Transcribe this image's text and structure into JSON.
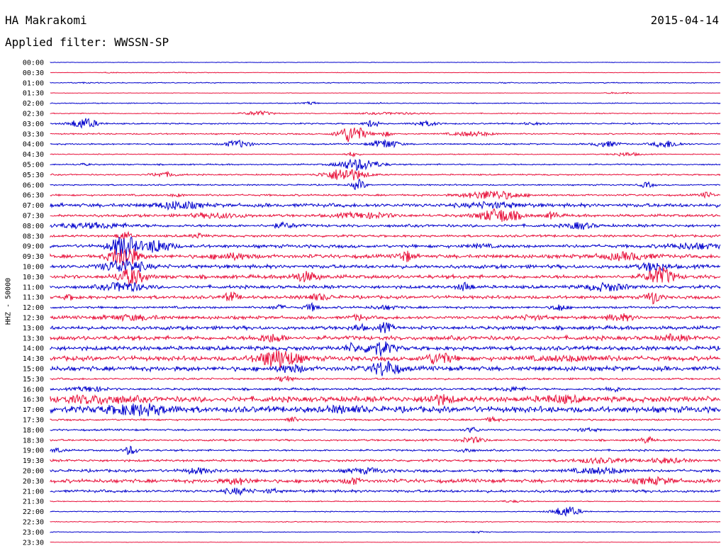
{
  "header": {
    "station": "HA Makrakomi",
    "date": "2015-04-14",
    "filter": "Applied filter: WWSSN-SP"
  },
  "chart_data": {
    "type": "line",
    "title": "HA Makrakomi",
    "ylabel": "HHZ - 50000",
    "colors": [
      "#0000cc",
      "#e8103a"
    ],
    "rows": [
      {
        "label": "00:00",
        "activity": 0.05,
        "events": []
      },
      {
        "label": "00:30",
        "activity": 0.05,
        "events": [
          [
            0.09,
            0.1,
            0.01
          ],
          [
            0.18,
            0.05,
            0.06
          ]
        ]
      },
      {
        "label": "01:00",
        "activity": 0.1,
        "events": [
          [
            0.05,
            0.1,
            0.01
          ],
          [
            0.68,
            0.1,
            0.01
          ]
        ]
      },
      {
        "label": "01:30",
        "activity": 0.05,
        "events": [
          [
            0.84,
            0.15,
            0.01
          ],
          [
            0.86,
            0.15,
            0.01
          ]
        ]
      },
      {
        "label": "02:00",
        "activity": 0.1,
        "events": [
          [
            0.39,
            0.3,
            0.01
          ],
          [
            0.49,
            0.1,
            0.01
          ]
        ]
      },
      {
        "label": "02:30",
        "activity": 0.1,
        "events": [
          [
            0.31,
            0.5,
            0.02
          ],
          [
            0.51,
            0.2,
            0.05
          ]
        ]
      },
      {
        "label": "03:00",
        "activity": 0.15,
        "events": [
          [
            0.05,
            1.2,
            0.02
          ],
          [
            0.48,
            0.8,
            0.01
          ],
          [
            0.56,
            0.5,
            0.02
          ],
          [
            0.72,
            0.2,
            0.02
          ]
        ]
      },
      {
        "label": "03:30",
        "activity": 0.15,
        "events": [
          [
            0.45,
            2.0,
            0.02
          ],
          [
            0.5,
            0.5,
            0.01
          ],
          [
            0.63,
            0.5,
            0.03
          ]
        ]
      },
      {
        "label": "04:00",
        "activity": 0.15,
        "events": [
          [
            0.28,
            0.8,
            0.02
          ],
          [
            0.5,
            1.0,
            0.02
          ],
          [
            0.83,
            0.6,
            0.02
          ],
          [
            0.92,
            0.8,
            0.02
          ]
        ]
      },
      {
        "label": "04:30",
        "activity": 0.1,
        "events": [
          [
            0.45,
            0.5,
            0.01
          ],
          [
            0.86,
            0.4,
            0.02
          ]
        ]
      },
      {
        "label": "05:00",
        "activity": 0.15,
        "events": [
          [
            0.46,
            1.3,
            0.03
          ],
          [
            0.05,
            0.2,
            0.01
          ]
        ]
      },
      {
        "label": "05:30",
        "activity": 0.15,
        "events": [
          [
            0.44,
            1.5,
            0.03
          ],
          [
            0.17,
            0.5,
            0.02
          ]
        ]
      },
      {
        "label": "06:00",
        "activity": 0.15,
        "events": [
          [
            0.46,
            1.2,
            0.01
          ],
          [
            0.89,
            0.6,
            0.01
          ]
        ]
      },
      {
        "label": "06:30",
        "activity": 0.2,
        "events": [
          [
            0.66,
            1.0,
            0.04
          ],
          [
            0.19,
            0.3,
            0.01
          ],
          [
            0.98,
            0.6,
            0.01
          ]
        ]
      },
      {
        "label": "07:00",
        "activity": 0.4,
        "events": [
          [
            0.19,
            0.8,
            0.03
          ],
          [
            0.66,
            0.5,
            0.04
          ]
        ]
      },
      {
        "label": "07:30",
        "activity": 0.3,
        "events": [
          [
            0.25,
            0.5,
            0.04
          ],
          [
            0.47,
            0.6,
            0.04
          ],
          [
            0.67,
            1.5,
            0.03
          ],
          [
            0.75,
            0.7,
            0.01
          ]
        ]
      },
      {
        "label": "08:00",
        "activity": 0.3,
        "events": [
          [
            0.06,
            0.5,
            0.06
          ],
          [
            0.35,
            0.5,
            0.02
          ],
          [
            0.79,
            0.7,
            0.02
          ]
        ]
      },
      {
        "label": "08:30",
        "activity": 0.25,
        "events": [
          [
            0.11,
            1.0,
            0.01
          ],
          [
            0.22,
            0.5,
            0.01
          ]
        ]
      },
      {
        "label": "09:00",
        "activity": 0.35,
        "events": [
          [
            0.11,
            2.5,
            0.02
          ],
          [
            0.16,
            1.5,
            0.02
          ],
          [
            0.64,
            0.3,
            0.02
          ],
          [
            0.96,
            0.6,
            0.04
          ]
        ]
      },
      {
        "label": "09:30",
        "activity": 0.4,
        "events": [
          [
            0.11,
            2.5,
            0.02
          ],
          [
            0.27,
            0.6,
            0.03
          ],
          [
            0.53,
            1.2,
            0.01
          ],
          [
            0.86,
            0.7,
            0.04
          ]
        ]
      },
      {
        "label": "10:00",
        "activity": 0.4,
        "events": [
          [
            0.11,
            1.5,
            0.03
          ],
          [
            0.9,
            0.9,
            0.02
          ]
        ]
      },
      {
        "label": "10:30",
        "activity": 0.4,
        "events": [
          [
            0.12,
            1.8,
            0.02
          ],
          [
            0.38,
            1.0,
            0.02
          ],
          [
            0.91,
            2.0,
            0.02
          ]
        ]
      },
      {
        "label": "11:00",
        "activity": 0.35,
        "events": [
          [
            0.11,
            1.0,
            0.03
          ],
          [
            0.62,
            1.0,
            0.01
          ],
          [
            0.83,
            0.8,
            0.03
          ]
        ]
      },
      {
        "label": "11:30",
        "activity": 0.35,
        "events": [
          [
            0.03,
            0.5,
            0.01
          ],
          [
            0.27,
            1.0,
            0.01
          ],
          [
            0.4,
            0.6,
            0.02
          ],
          [
            0.9,
            1.5,
            0.01
          ]
        ]
      },
      {
        "label": "12:00",
        "activity": 0.25,
        "events": [
          [
            0.34,
            0.5,
            0.01
          ],
          [
            0.39,
            0.8,
            0.01
          ],
          [
            0.5,
            0.4,
            0.02
          ],
          [
            0.76,
            0.8,
            0.01
          ]
        ]
      },
      {
        "label": "12:30",
        "activity": 0.35,
        "events": [
          [
            0.12,
            0.5,
            0.04
          ],
          [
            0.46,
            0.6,
            0.01
          ],
          [
            0.72,
            0.4,
            0.02
          ],
          [
            0.85,
            0.7,
            0.02
          ]
        ]
      },
      {
        "label": "13:00",
        "activity": 0.4,
        "events": [
          [
            0.46,
            0.6,
            0.01
          ],
          [
            0.5,
            1.0,
            0.01
          ]
        ]
      },
      {
        "label": "13:30",
        "activity": 0.45,
        "events": [
          [
            0.33,
            0.8,
            0.02
          ],
          [
            0.93,
            0.5,
            0.02
          ]
        ]
      },
      {
        "label": "14:00",
        "activity": 0.45,
        "events": [
          [
            0.49,
            1.5,
            0.02
          ],
          [
            0.45,
            0.8,
            0.01
          ]
        ]
      },
      {
        "label": "14:30",
        "activity": 0.5,
        "events": [
          [
            0.34,
            2.0,
            0.03
          ],
          [
            0.58,
            1.2,
            0.02
          ],
          [
            0.78,
            0.4,
            0.06
          ]
        ]
      },
      {
        "label": "15:00",
        "activity": 0.5,
        "events": [
          [
            0.5,
            1.6,
            0.02
          ],
          [
            0.36,
            0.7,
            0.02
          ]
        ]
      },
      {
        "label": "15:30",
        "activity": 0.2,
        "events": [
          [
            0.35,
            0.8,
            0.01
          ]
        ]
      },
      {
        "label": "16:00",
        "activity": 0.25,
        "events": [
          [
            0.06,
            0.6,
            0.02
          ],
          [
            0.69,
            0.4,
            0.02
          ],
          [
            0.84,
            0.6,
            0.01
          ]
        ]
      },
      {
        "label": "16:30",
        "activity": 0.6,
        "events": [
          [
            0.07,
            0.7,
            0.05
          ],
          [
            0.58,
            0.9,
            0.02
          ],
          [
            0.76,
            0.6,
            0.03
          ]
        ]
      },
      {
        "label": "17:00",
        "activity": 0.65,
        "events": [
          [
            0.13,
            1.0,
            0.05
          ],
          [
            0.44,
            0.5,
            0.03
          ]
        ]
      },
      {
        "label": "17:30",
        "activity": 0.2,
        "events": [
          [
            0.36,
            0.6,
            0.01
          ],
          [
            0.66,
            0.5,
            0.01
          ]
        ]
      },
      {
        "label": "18:00",
        "activity": 0.2,
        "events": [
          [
            0.63,
            0.6,
            0.01
          ],
          [
            0.8,
            0.3,
            0.02
          ]
        ]
      },
      {
        "label": "18:30",
        "activity": 0.2,
        "events": [
          [
            0.63,
            0.6,
            0.02
          ],
          [
            0.89,
            0.7,
            0.01
          ]
        ]
      },
      {
        "label": "19:00",
        "activity": 0.2,
        "events": [
          [
            0.01,
            0.5,
            0.01
          ],
          [
            0.12,
            1.0,
            0.01
          ],
          [
            0.62,
            0.5,
            0.01
          ]
        ]
      },
      {
        "label": "19:30",
        "activity": 0.25,
        "events": [
          [
            0.82,
            0.5,
            0.04
          ],
          [
            0.92,
            0.5,
            0.03
          ]
        ]
      },
      {
        "label": "20:00",
        "activity": 0.3,
        "events": [
          [
            0.22,
            0.6,
            0.02
          ],
          [
            0.47,
            0.5,
            0.03
          ],
          [
            0.82,
            0.6,
            0.04
          ]
        ]
      },
      {
        "label": "20:30",
        "activity": 0.4,
        "events": [
          [
            0.28,
            0.6,
            0.02
          ],
          [
            0.45,
            0.8,
            0.01
          ],
          [
            0.9,
            0.6,
            0.03
          ]
        ]
      },
      {
        "label": "21:00",
        "activity": 0.3,
        "events": [
          [
            0.28,
            0.6,
            0.02
          ],
          [
            0.33,
            0.4,
            0.01
          ]
        ]
      },
      {
        "label": "21:30",
        "activity": 0.1,
        "events": [
          [
            0.69,
            0.2,
            0.02
          ]
        ]
      },
      {
        "label": "22:00",
        "activity": 0.1,
        "events": [
          [
            0.77,
            1.2,
            0.02
          ]
        ]
      },
      {
        "label": "22:30",
        "activity": 0.1,
        "events": []
      },
      {
        "label": "23:00",
        "activity": 0.08,
        "events": [
          [
            0.64,
            0.2,
            0.01
          ]
        ]
      },
      {
        "label": "23:30",
        "activity": 0.05,
        "events": []
      }
    ]
  }
}
